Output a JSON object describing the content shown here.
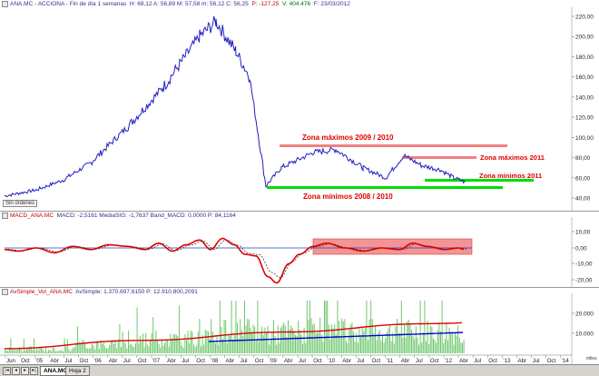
{
  "price_panel": {
    "header_symbol": "ANA.MC - ACCIONA",
    "header_period": "Fin de día 1 semanas",
    "header_values": "H: 69,12  A: 56,89  M: 57,58  m: 56,12  C: 56,25",
    "header_change": "P: -127,25",
    "header_volume": "V: 404.476",
    "header_date": "F: 23/03/2012",
    "sin_ordenes": "Sin órdenes",
    "y_ticks": [
      "220,00",
      "200,00",
      "180,00",
      "160,00",
      "140,00",
      "120,00",
      "100,00",
      "80,00",
      "60,00",
      "40,00"
    ],
    "annotations": {
      "max_2009_2010": "Zona máximos 2009 / 2010",
      "max_2011": "Zona máximos 2011",
      "min_2011": "Zona mínimos 2011",
      "min_2008_2010": "Zona mínimos 2008 / 2010"
    }
  },
  "macd_panel": {
    "header_name": "MACD_ANA.MC",
    "header_values": "MACD: -2,5161  MediaSIG: -1,7637  Band_MACD: 0,0000  P: 84,1164",
    "y_ticks": [
      "0,00",
      "-10,00",
      "-20,00"
    ],
    "top_tick": "10,00"
  },
  "volume_panel": {
    "header_name": "AvSimple_Vol_ANA.MC",
    "header_values": "AvSimple: 1.370.697,6150  P: 12.910.800,2091",
    "y_ticks": [
      "20.000",
      "10.000"
    ],
    "bottom_tick": "miles"
  },
  "x_axis": {
    "labels": [
      "Jun",
      "Oct",
      "'05",
      "Abr",
      "Jul",
      "Oct",
      "'06",
      "Abr",
      "Jul",
      "Oct",
      "'07",
      "Abr",
      "Jul",
      "Oct",
      "'08",
      "Abr",
      "Jul",
      "Oct",
      "'09",
      "Abr",
      "Jul",
      "Oct",
      "'10",
      "Abr",
      "Jul",
      "Oct",
      "'11",
      "Abr",
      "Jul",
      "Oct",
      "'12",
      "Abr",
      "Jul",
      "Oct",
      "'13",
      "Abr",
      "Jul",
      "Oct",
      "'14"
    ]
  },
  "tabs": {
    "active": "ANA.MC",
    "inactive": "Hoja 2"
  },
  "colors": {
    "price_line": "#2020c0",
    "zone_max": "#f08080",
    "zone_min": "#00dd00",
    "annotation_text": "#e00000",
    "macd_line": "#dd0000",
    "signal_line": "#222222",
    "macd_box": "#f07070",
    "volume_bars": "#6ec86e",
    "avg_red": "#dd0000",
    "avg_blue": "#0000cc"
  },
  "chart_data": {
    "type": "line",
    "title": "ANA.MC - ACCIONA",
    "ylabel": "",
    "ylim": [
      35,
      228
    ],
    "x": [
      "2004-06",
      "2005-01",
      "2005-07",
      "2006-01",
      "2006-07",
      "2007-01",
      "2007-07",
      "2007-11",
      "2008-03",
      "2008-07",
      "2008-10",
      "2009-01",
      "2009-07",
      "2010-01",
      "2010-07",
      "2011-01",
      "2011-04",
      "2011-07",
      "2011-10",
      "2012-01",
      "2012-03"
    ],
    "series": [
      {
        "values": [
          42,
          48,
          58,
          75,
          110,
          150,
          200,
          215,
          185,
          160,
          52,
          70,
          85,
          88,
          70,
          60,
          82,
          72,
          68,
          60,
          56
        ]
      }
    ]
  }
}
